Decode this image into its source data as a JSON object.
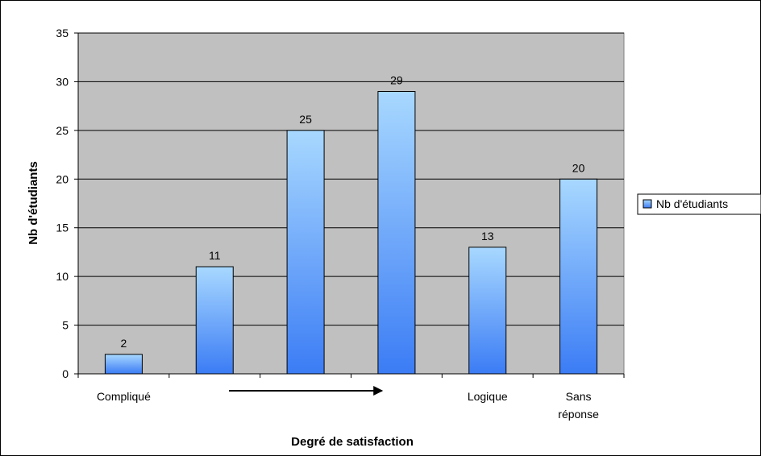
{
  "chart_data": {
    "type": "bar",
    "categories": [
      "Compliqué",
      "",
      "",
      "",
      "Logique",
      "Sans réponse"
    ],
    "category_lines": [
      [
        "Compliqué"
      ],
      [],
      [],
      [],
      [
        "Logique"
      ],
      [
        "Sans",
        "réponse"
      ]
    ],
    "series": [
      {
        "name": "Nb d'étudiants",
        "values": [
          2,
          11,
          25,
          29,
          13,
          20
        ]
      }
    ],
    "data_labels": [
      "2",
      "11",
      "25",
      "29",
      "13",
      "20"
    ],
    "xlabel": "Degré de satisfaction",
    "ylabel": "Nb d'étudiants",
    "ylim": [
      0,
      35
    ],
    "yticks": [
      0,
      5,
      10,
      15,
      20,
      25,
      30,
      35
    ],
    "grid": true,
    "legend_position": "right",
    "annotation": "arrow pointing right beneath the middle categories",
    "colors": {
      "plot_background": "#c0c0c0",
      "bar_top": "#a8d8ff",
      "bar_bottom": "#3b7cf5",
      "bar_outline": "#000000",
      "gridline": "#000000"
    }
  }
}
